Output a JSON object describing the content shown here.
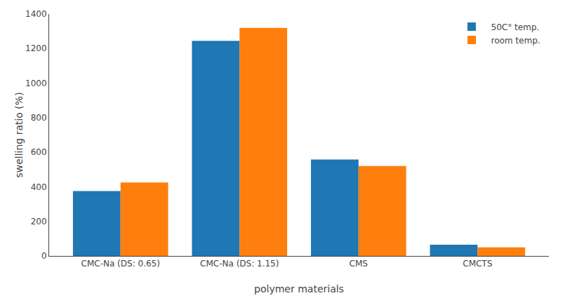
{
  "chart_data": {
    "type": "bar",
    "categories": [
      "CMC-Na (DS: 0.65)",
      "CMC-Na (DS: 1.15)",
      "CMS",
      "CMCTS"
    ],
    "series": [
      {
        "name": "  50C° temp.",
        "values": [
          375,
          1245,
          558,
          65
        ]
      },
      {
        "name": "  room temp.",
        "values": [
          425,
          1320,
          520,
          50
        ]
      }
    ],
    "xlabel": "polymer materials",
    "ylabel": "swelling ratio (%)",
    "ylim": [
      0,
      1400
    ],
    "yticks": [
      0,
      200,
      400,
      600,
      800,
      1000,
      1200,
      1400
    ],
    "grid": false,
    "legend": "upper right"
  }
}
